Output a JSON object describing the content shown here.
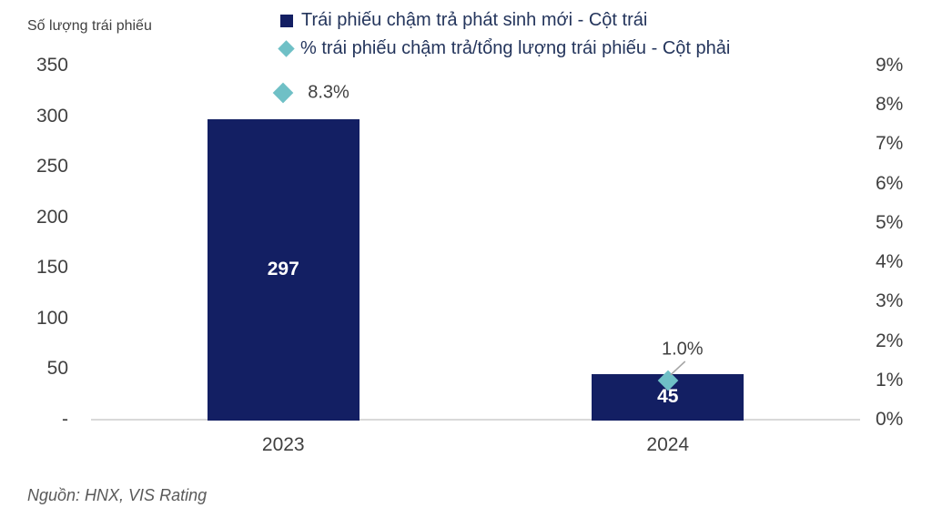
{
  "colors": {
    "bar_navy": "#131F63",
    "marker_teal": "#6FC0C6",
    "axis_text": "#404040",
    "legend_text": "#24355C",
    "baseline_gray": "#D9D9D9",
    "leader_line_gray": "#A6A6A6",
    "source_text": "#595959"
  },
  "chart_data": {
    "type": "bar",
    "subtype": "combo-bar-and-diamond-scatter-dual-axis",
    "left_axis_title": "Số lượng trái phiếu",
    "categories": [
      "2023",
      "2024"
    ],
    "series": [
      {
        "name": "Trái phiếu chậm trả phát sinh mới - Cột trái",
        "chart_type": "bar",
        "axis": "left",
        "values": [
          297,
          45
        ],
        "value_labels": [
          "297",
          "45"
        ],
        "color": "#131F63"
      },
      {
        "name": "% trái phiếu chậm trả/tổng lượng trái phiếu - Cột phải",
        "chart_type": "scatter",
        "marker": "diamond",
        "axis": "right",
        "values": [
          8.3,
          1.0
        ],
        "value_labels": [
          "8.3%",
          "1.0%"
        ],
        "label_placement": [
          "right",
          "above-with-leader-line"
        ],
        "color": "#6FC0C6"
      }
    ],
    "left_axis": {
      "min": 0,
      "max": 350,
      "tick_labels": [
        "350",
        "300",
        "250",
        "200",
        "150",
        "100",
        "50",
        "-"
      ]
    },
    "right_axis": {
      "min": 0,
      "max": 9,
      "tick_labels": [
        "9%",
        "8%",
        "7%",
        "6%",
        "5%",
        "4%",
        "3%",
        "2%",
        "1%",
        "0%"
      ]
    },
    "grid": false,
    "legend_position": "top",
    "source": "Nguồn: HNX, VIS Rating"
  }
}
